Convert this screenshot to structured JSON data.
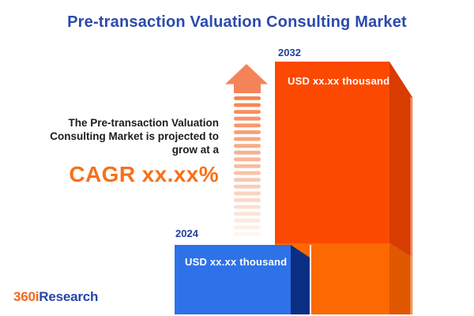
{
  "title": "Pre-transaction Valuation Consulting Market",
  "annotation": {
    "lines": [
      "The Pre-transaction Valuation",
      "Consulting Market is projected to",
      "grow at a"
    ],
    "cagr": "CAGR xx.xx%"
  },
  "bars": {
    "y2032": {
      "year": "2032",
      "value": "USD xx.xx thousand"
    },
    "y2024": {
      "year": "2024",
      "value": "USD xx.xx thousand"
    }
  },
  "logo": {
    "prefix": "360i",
    "suffix": "Research"
  },
  "colors": {
    "title": "#2B4AAD",
    "year_label": "#24409A",
    "annotation_text": "#1D1D1D",
    "cagr": "#F8701A",
    "bar2032_face": "#FC4902",
    "bar2032_side": "#D83C00",
    "base2032_face": "#FB6900",
    "base2032_side": "#E05802",
    "bar2024_face": "#2E72E8",
    "bar2024_side": "#0A2F82",
    "arrow_head": "#F5835A",
    "edge_highlight": "#FFD3BB",
    "gap_line": "#FFFFFF",
    "logo_prefix": "#F0681C",
    "logo_suffix": "#2746A8",
    "value_text": "#FFFFFF"
  },
  "chart_data": {
    "type": "bar",
    "categories": [
      "2024",
      "2032"
    ],
    "values": [
      null,
      null
    ],
    "value_labels": [
      "USD xx.xx thousand",
      "USD xx.xx thousand"
    ],
    "title": "Pre-transaction Valuation Consulting Market",
    "annotations": [
      "The Pre-transaction Valuation Consulting Market is projected to grow at a",
      "CAGR xx.xx%"
    ],
    "bar_colors": [
      "#2E72E8",
      "#FC4902"
    ],
    "xlabel": "",
    "ylabel": "",
    "legend": false,
    "grid": false
  }
}
